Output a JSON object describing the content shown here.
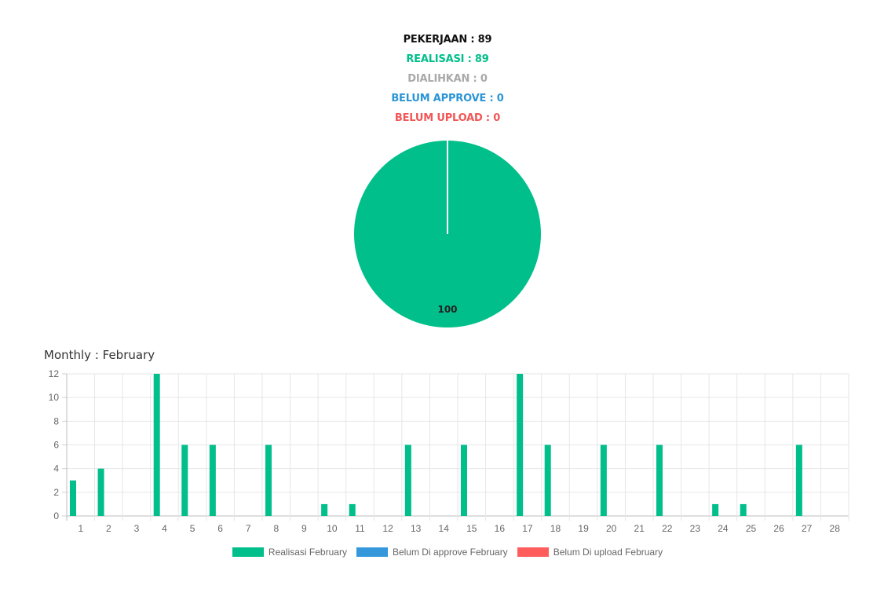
{
  "stats": {
    "pekerjaan": {
      "text": "PEKERJAAN : 89",
      "color": "#111111"
    },
    "realisasi": {
      "text": "REALISASI : 89",
      "color": "#00bf8a"
    },
    "dialihkan": {
      "text": "DIALIHKAN : 0",
      "color": "#a9a9a9"
    },
    "belum_approve": {
      "text": "BELUM APPROVE : 0",
      "color": "#2b95d6"
    },
    "belum_upload": {
      "text": "BELUM UPLOAD : 0",
      "color": "#f25656"
    }
  },
  "monthly_title": "Monthly : February",
  "legend": {
    "realisasi": {
      "label": "Realisasi February",
      "color": "#00bf8a"
    },
    "belum_approve": {
      "label": "Belum Di approve February",
      "color": "#3498db"
    },
    "belum_upload": {
      "label": "Belum Di upload February",
      "color": "#ff5c5c"
    }
  },
  "chart_data": [
    {
      "type": "pie",
      "slices": [
        {
          "value": 100,
          "color": "#00bf8a",
          "data_label": "100"
        }
      ]
    },
    {
      "type": "bar",
      "categories": [
        "1",
        "2",
        "3",
        "4",
        "5",
        "6",
        "7",
        "8",
        "9",
        "10",
        "11",
        "12",
        "13",
        "14",
        "15",
        "16",
        "17",
        "18",
        "19",
        "20",
        "21",
        "22",
        "23",
        "24",
        "25",
        "26",
        "27",
        "28"
      ],
      "series": [
        {
          "name": "Realisasi February",
          "color": "#00bf8a",
          "values": [
            3,
            4,
            0,
            12,
            6,
            6,
            0,
            6,
            0,
            1,
            1,
            0,
            6,
            0,
            6,
            0,
            12,
            6,
            0,
            6,
            0,
            6,
            0,
            1,
            1,
            0,
            6,
            0
          ]
        },
        {
          "name": "Belum Di approve February",
          "color": "#3498db",
          "values": [
            0,
            0,
            0,
            0,
            0,
            0,
            0,
            0,
            0,
            0,
            0,
            0,
            0,
            0,
            0,
            0,
            0,
            0,
            0,
            0,
            0,
            0,
            0,
            0,
            0,
            0,
            0,
            0
          ]
        },
        {
          "name": "Belum Di upload February",
          "color": "#ff5c5c",
          "values": [
            0,
            0,
            0,
            0,
            0,
            0,
            0,
            0,
            0,
            0,
            0,
            0,
            0,
            0,
            0,
            0,
            0,
            0,
            0,
            0,
            0,
            0,
            0,
            0,
            0,
            0,
            0,
            0
          ]
        }
      ],
      "ylim": [
        0,
        12
      ],
      "yticks": [
        0,
        2,
        4,
        6,
        8,
        10,
        12
      ],
      "grid": true,
      "legend_position": "bottom"
    }
  ]
}
